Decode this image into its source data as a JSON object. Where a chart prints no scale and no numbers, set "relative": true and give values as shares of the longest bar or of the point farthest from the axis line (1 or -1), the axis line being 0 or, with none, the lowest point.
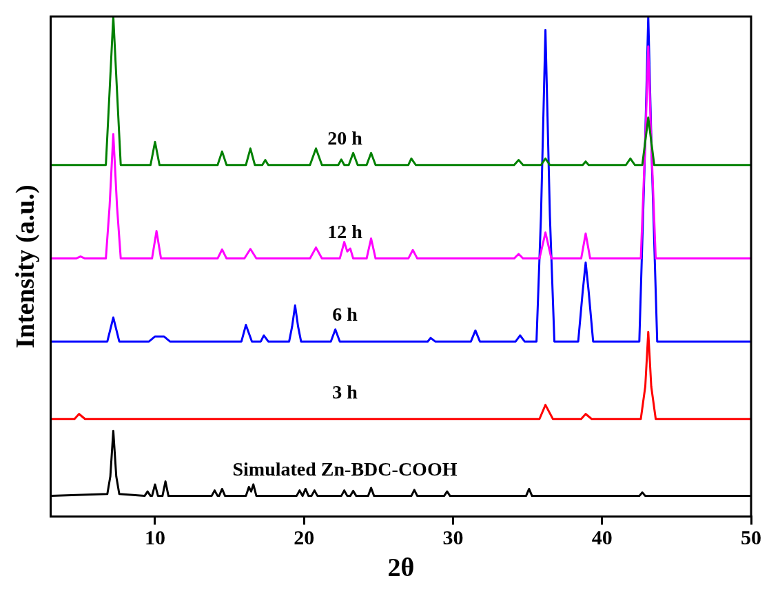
{
  "chart_data": {
    "type": "line",
    "relative": true,
    "xlabel": "2θ",
    "ylabel": "Intensity (a.u.)",
    "xlim": [
      3,
      50
    ],
    "xticks": [
      10,
      20,
      30,
      40,
      50
    ],
    "series": [
      {
        "name": "Simulated Zn-BDC-COOH",
        "color": "#000000",
        "x": [
          3,
          6.8,
          7.0,
          7.2,
          7.4,
          7.6,
          9.3,
          9.5,
          9.7,
          9.8,
          10.0,
          10.2,
          10.5,
          10.7,
          10.9,
          13.8,
          14.0,
          14.2,
          14.3,
          14.5,
          14.7,
          16.1,
          16.3,
          16.45,
          16.6,
          16.8,
          19.5,
          19.7,
          19.9,
          20.1,
          20.3,
          20.5,
          20.7,
          20.9,
          22.5,
          22.7,
          22.9,
          23.1,
          23.3,
          23.5,
          24.3,
          24.5,
          24.7,
          27.2,
          27.4,
          27.6,
          29.4,
          29.6,
          29.8,
          34.9,
          35.1,
          35.3,
          42.5,
          42.7,
          42.9,
          50
        ],
        "values": [
          0.041,
          0.045,
          0.08,
          0.171,
          0.08,
          0.045,
          0.041,
          0.05,
          0.041,
          0.041,
          0.064,
          0.041,
          0.041,
          0.07,
          0.041,
          0.041,
          0.052,
          0.041,
          0.041,
          0.055,
          0.041,
          0.041,
          0.059,
          0.05,
          0.064,
          0.041,
          0.041,
          0.052,
          0.041,
          0.055,
          0.041,
          0.041,
          0.052,
          0.041,
          0.041,
          0.052,
          0.041,
          0.041,
          0.051,
          0.041,
          0.041,
          0.057,
          0.041,
          0.041,
          0.053,
          0.041,
          0.041,
          0.05,
          0.041,
          0.041,
          0.055,
          0.041,
          0.041,
          0.048,
          0.041,
          0.041
        ]
      },
      {
        "name": "3 h",
        "color": "#ff0000",
        "x": [
          3,
          4.6,
          4.9,
          5.3,
          35.8,
          36.2,
          36.7,
          38.6,
          38.9,
          39.3,
          42.6,
          42.9,
          43.1,
          43.3,
          43.6,
          50
        ],
        "values": [
          0.195,
          0.195,
          0.205,
          0.195,
          0.195,
          0.223,
          0.195,
          0.195,
          0.205,
          0.195,
          0.195,
          0.26,
          0.369,
          0.26,
          0.195,
          0.195
        ]
      },
      {
        "name": "6 h",
        "color": "#0000ff",
        "x": [
          3,
          6.8,
          7.2,
          7.6,
          9.6,
          10.0,
          10.6,
          11.0,
          15.8,
          16.1,
          16.5,
          17.1,
          17.3,
          17.6,
          19.0,
          19.2,
          19.4,
          19.6,
          19.8,
          21.8,
          22.1,
          22.4,
          28.3,
          28.5,
          28.8,
          31.2,
          31.5,
          31.8,
          34.2,
          34.5,
          34.8,
          35.6,
          35.9,
          36.2,
          36.5,
          36.8,
          38.4,
          38.7,
          38.9,
          39.1,
          39.4,
          42.5,
          42.85,
          43.1,
          43.35,
          43.7,
          50
        ],
        "values": [
          0.35,
          0.35,
          0.398,
          0.35,
          0.35,
          0.36,
          0.36,
          0.35,
          0.35,
          0.383,
          0.35,
          0.35,
          0.362,
          0.35,
          0.35,
          0.38,
          0.422,
          0.38,
          0.35,
          0.35,
          0.374,
          0.35,
          0.35,
          0.357,
          0.35,
          0.35,
          0.372,
          0.35,
          0.35,
          0.362,
          0.35,
          0.35,
          0.6,
          0.973,
          0.6,
          0.35,
          0.35,
          0.45,
          0.508,
          0.45,
          0.35,
          0.35,
          0.7,
          1,
          0.7,
          0.35,
          0.35
        ]
      },
      {
        "name": "12 h",
        "color": "#ff00ff",
        "x": [
          3,
          4.7,
          5.0,
          5.3,
          6.7,
          6.95,
          7.2,
          7.45,
          7.7,
          9.8,
          10.1,
          10.4,
          14.2,
          14.5,
          14.8,
          16.0,
          16.4,
          16.8,
          20.4,
          20.8,
          21.2,
          22.4,
          22.7,
          22.9,
          23.1,
          23.3,
          24.2,
          24.5,
          24.8,
          27.0,
          27.3,
          27.6,
          34.1,
          34.4,
          34.7,
          35.8,
          36.2,
          36.6,
          38.6,
          38.9,
          39.2,
          42.6,
          42.9,
          43.1,
          43.3,
          43.6,
          50
        ],
        "values": [
          0.516,
          0.516,
          0.52,
          0.516,
          0.516,
          0.62,
          0.765,
          0.62,
          0.516,
          0.516,
          0.571,
          0.516,
          0.516,
          0.534,
          0.516,
          0.516,
          0.535,
          0.516,
          0.516,
          0.538,
          0.516,
          0.516,
          0.549,
          0.53,
          0.536,
          0.516,
          0.516,
          0.556,
          0.516,
          0.516,
          0.533,
          0.516,
          0.516,
          0.525,
          0.516,
          0.516,
          0.568,
          0.516,
          0.516,
          0.566,
          0.516,
          0.516,
          0.75,
          0.94,
          0.75,
          0.516,
          0.516
        ]
      },
      {
        "name": "20 h",
        "color": "#008000",
        "x": [
          3,
          6.7,
          6.95,
          7.2,
          7.45,
          7.7,
          9.7,
          10.0,
          10.3,
          14.2,
          14.5,
          14.8,
          16.1,
          16.4,
          16.7,
          17.2,
          17.4,
          17.6,
          20.4,
          20.8,
          21.2,
          22.3,
          22.5,
          22.7,
          23.0,
          23.3,
          23.6,
          24.2,
          24.5,
          24.8,
          27.0,
          27.2,
          27.5,
          34.1,
          34.4,
          34.7,
          35.9,
          36.2,
          36.5,
          38.7,
          38.9,
          39.1,
          41.6,
          41.9,
          42.2,
          42.7,
          43.1,
          43.5,
          50
        ],
        "values": [
          0.703,
          0.703,
          0.85,
          1,
          0.85,
          0.703,
          0.703,
          0.749,
          0.703,
          0.703,
          0.73,
          0.703,
          0.703,
          0.736,
          0.703,
          0.703,
          0.713,
          0.703,
          0.703,
          0.736,
          0.703,
          0.703,
          0.714,
          0.703,
          0.703,
          0.727,
          0.703,
          0.703,
          0.727,
          0.703,
          0.703,
          0.716,
          0.703,
          0.703,
          0.713,
          0.703,
          0.703,
          0.716,
          0.703,
          0.703,
          0.71,
          0.703,
          0.703,
          0.716,
          0.703,
          0.703,
          0.798,
          0.703,
          0.703
        ]
      }
    ]
  }
}
